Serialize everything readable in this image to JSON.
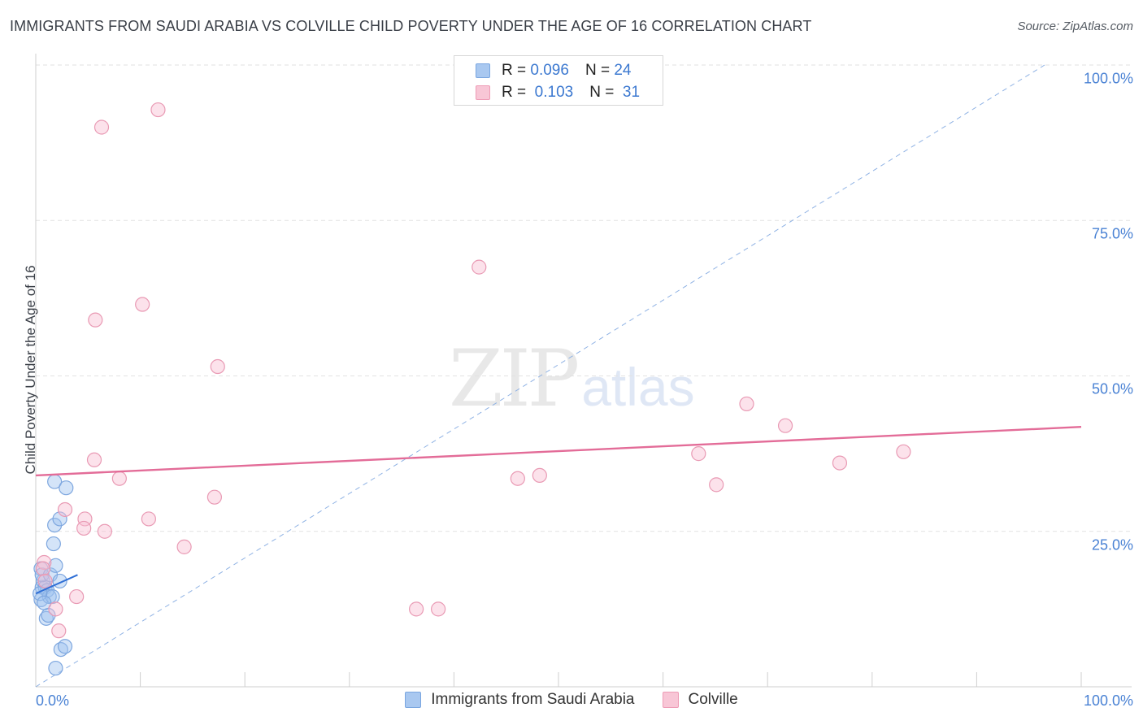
{
  "title": "IMMIGRANTS FROM SAUDI ARABIA VS COLVILLE CHILD POVERTY UNDER THE AGE OF 16 CORRELATION CHART",
  "source": "Source: ZipAtlas.com",
  "watermark": {
    "zip": "ZIP",
    "atlas": "atlas"
  },
  "stats": [
    {
      "r_label": "R =",
      "r_value": "0.096",
      "n_label": "N =",
      "n_value": "24",
      "color": "#a9c8f0",
      "border": "#7aa6e0"
    },
    {
      "r_label": "R =",
      "r_value": "0.103",
      "n_label": "N =",
      "n_value": "31",
      "color": "#f8c6d6",
      "border": "#ee9bb5"
    }
  ],
  "legend": [
    {
      "label": "Immigrants from Saudi Arabia",
      "color": "#a9c8f0",
      "border": "#7aa6e0"
    },
    {
      "label": "Colville",
      "color": "#f8c6d6",
      "border": "#ee9bb5"
    }
  ],
  "colors": {
    "blue_point_fill": "rgba(160,195,240,0.45)",
    "blue_point_stroke": "#7ea7df",
    "pink_point_fill": "rgba(248,190,210,0.45)",
    "pink_point_stroke": "#e99ab4",
    "blue_line": "#2f6fd6",
    "pink_line": "#e36c98",
    "diag_line": "#8fb2e4",
    "grid": "#e2e2e2",
    "tick_label": "#4a82d4"
  },
  "chart_data": {
    "type": "scatter",
    "title": "IMMIGRANTS FROM SAUDI ARABIA VS COLVILLE CHILD POVERTY UNDER THE AGE OF 16 CORRELATION CHART",
    "xlabel": "",
    "ylabel": "Child Poverty Under the Age of 16",
    "xlim": [
      0,
      100
    ],
    "ylim": [
      0,
      100
    ],
    "x_ticks": [
      "0.0%",
      "100.0%"
    ],
    "y_ticks": [
      {
        "value": 25,
        "label": "25.0%"
      },
      {
        "value": 50,
        "label": "50.0%"
      },
      {
        "value": 75,
        "label": "75.0%"
      },
      {
        "value": 100,
        "label": "100.0%"
      }
    ],
    "grid": true,
    "series": [
      {
        "name": "Immigrants from Saudi Arabia",
        "points": [
          [
            0.5,
            19.0
          ],
          [
            0.6,
            16.0
          ],
          [
            0.5,
            14.0
          ],
          [
            0.7,
            17.0
          ],
          [
            0.9,
            16.0
          ],
          [
            0.6,
            18.0
          ],
          [
            1.1,
            15.5
          ],
          [
            1.3,
            14.5
          ],
          [
            1.4,
            18.0
          ],
          [
            1.6,
            14.5
          ],
          [
            1.9,
            19.5
          ],
          [
            2.3,
            17.0
          ],
          [
            1.7,
            23.0
          ],
          [
            1.8,
            26.0
          ],
          [
            2.3,
            27.0
          ],
          [
            1.8,
            33.0
          ],
          [
            2.9,
            32.0
          ],
          [
            1.0,
            11.0
          ],
          [
            1.2,
            11.5
          ],
          [
            2.4,
            6.0
          ],
          [
            2.8,
            6.5
          ],
          [
            1.9,
            3.0
          ],
          [
            0.4,
            15.0
          ],
          [
            0.8,
            13.5
          ]
        ],
        "trend": {
          "x": [
            0,
            4
          ],
          "y": [
            15.0,
            18.0
          ]
        }
      },
      {
        "name": "Colville",
        "points": [
          [
            6.3,
            90.0
          ],
          [
            11.7,
            92.8
          ],
          [
            10.2,
            61.5
          ],
          [
            5.7,
            59.0
          ],
          [
            42.4,
            67.5
          ],
          [
            17.4,
            51.5
          ],
          [
            5.6,
            36.5
          ],
          [
            8.0,
            33.5
          ],
          [
            17.1,
            30.5
          ],
          [
            2.8,
            28.5
          ],
          [
            4.7,
            27.0
          ],
          [
            10.8,
            27.0
          ],
          [
            4.6,
            25.5
          ],
          [
            6.6,
            25.0
          ],
          [
            14.2,
            22.5
          ],
          [
            0.8,
            20.0
          ],
          [
            0.7,
            19.0
          ],
          [
            3.9,
            14.5
          ],
          [
            1.9,
            12.5
          ],
          [
            2.2,
            9.0
          ],
          [
            36.4,
            12.5
          ],
          [
            38.5,
            12.5
          ],
          [
            46.1,
            33.5
          ],
          [
            48.2,
            34.0
          ],
          [
            63.4,
            37.5
          ],
          [
            68.0,
            45.5
          ],
          [
            71.7,
            42.0
          ],
          [
            65.1,
            32.5
          ],
          [
            76.9,
            36.0
          ],
          [
            83.0,
            37.8
          ],
          [
            0.9,
            17.0
          ]
        ],
        "trend": {
          "x": [
            0,
            100
          ],
          "y": [
            34.0,
            41.8
          ]
        }
      }
    ],
    "reference_line": {
      "style": "dashed",
      "x": [
        0,
        100
      ],
      "y": [
        0,
        100
      ]
    }
  }
}
